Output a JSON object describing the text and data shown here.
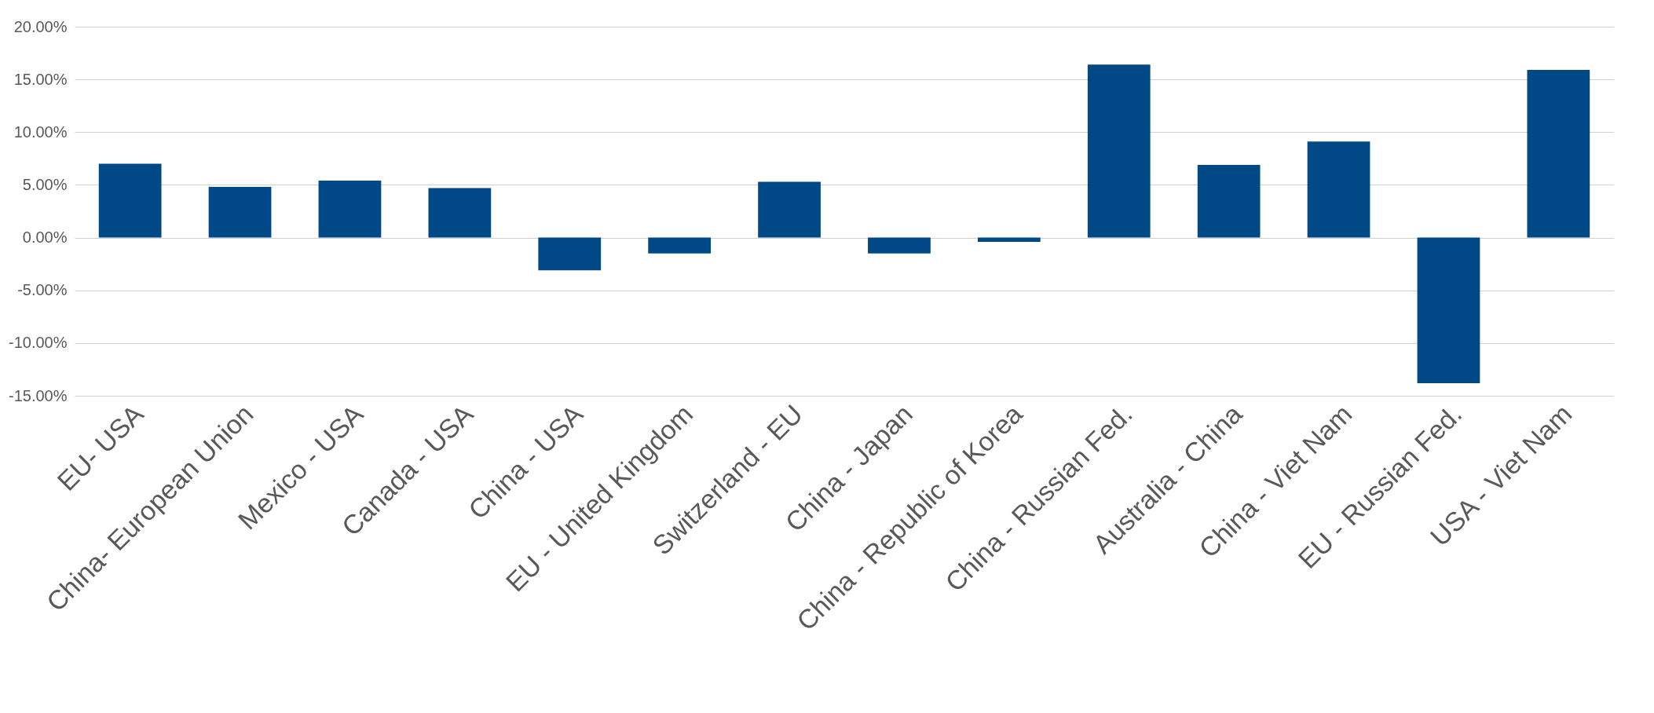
{
  "chart_data": {
    "type": "bar",
    "categories": [
      "EU- USA",
      "China- European Union",
      "Mexico - USA",
      "Canada - USA",
      "China - USA",
      "EU - United Kingdom",
      "Switzerland - EU",
      "China - Japan",
      "China - Republic of Korea",
      "China - Russian Fed.",
      "Australia - China",
      "China - Viet Nam",
      "EU - Russian Fed.",
      "USA - Viet Nam"
    ],
    "values": [
      7.0,
      4.8,
      5.4,
      4.7,
      -3.1,
      -1.5,
      5.3,
      -1.5,
      -0.4,
      16.4,
      6.9,
      9.1,
      -13.8,
      15.9
    ],
    "color": "#004987",
    "ylim": [
      -15,
      20
    ],
    "yticks": [
      {
        "value": -15,
        "label": "-15.00%"
      },
      {
        "value": -10,
        "label": "-10.00%"
      },
      {
        "value": -5,
        "label": "-5.00%"
      },
      {
        "value": 0,
        "label": "0.00%"
      },
      {
        "value": 5,
        "label": "5.00%"
      },
      {
        "value": 10,
        "label": "10.00%"
      },
      {
        "value": 15,
        "label": "15.00%"
      },
      {
        "value": 20,
        "label": "20.00%"
      }
    ],
    "grid": "y"
  }
}
